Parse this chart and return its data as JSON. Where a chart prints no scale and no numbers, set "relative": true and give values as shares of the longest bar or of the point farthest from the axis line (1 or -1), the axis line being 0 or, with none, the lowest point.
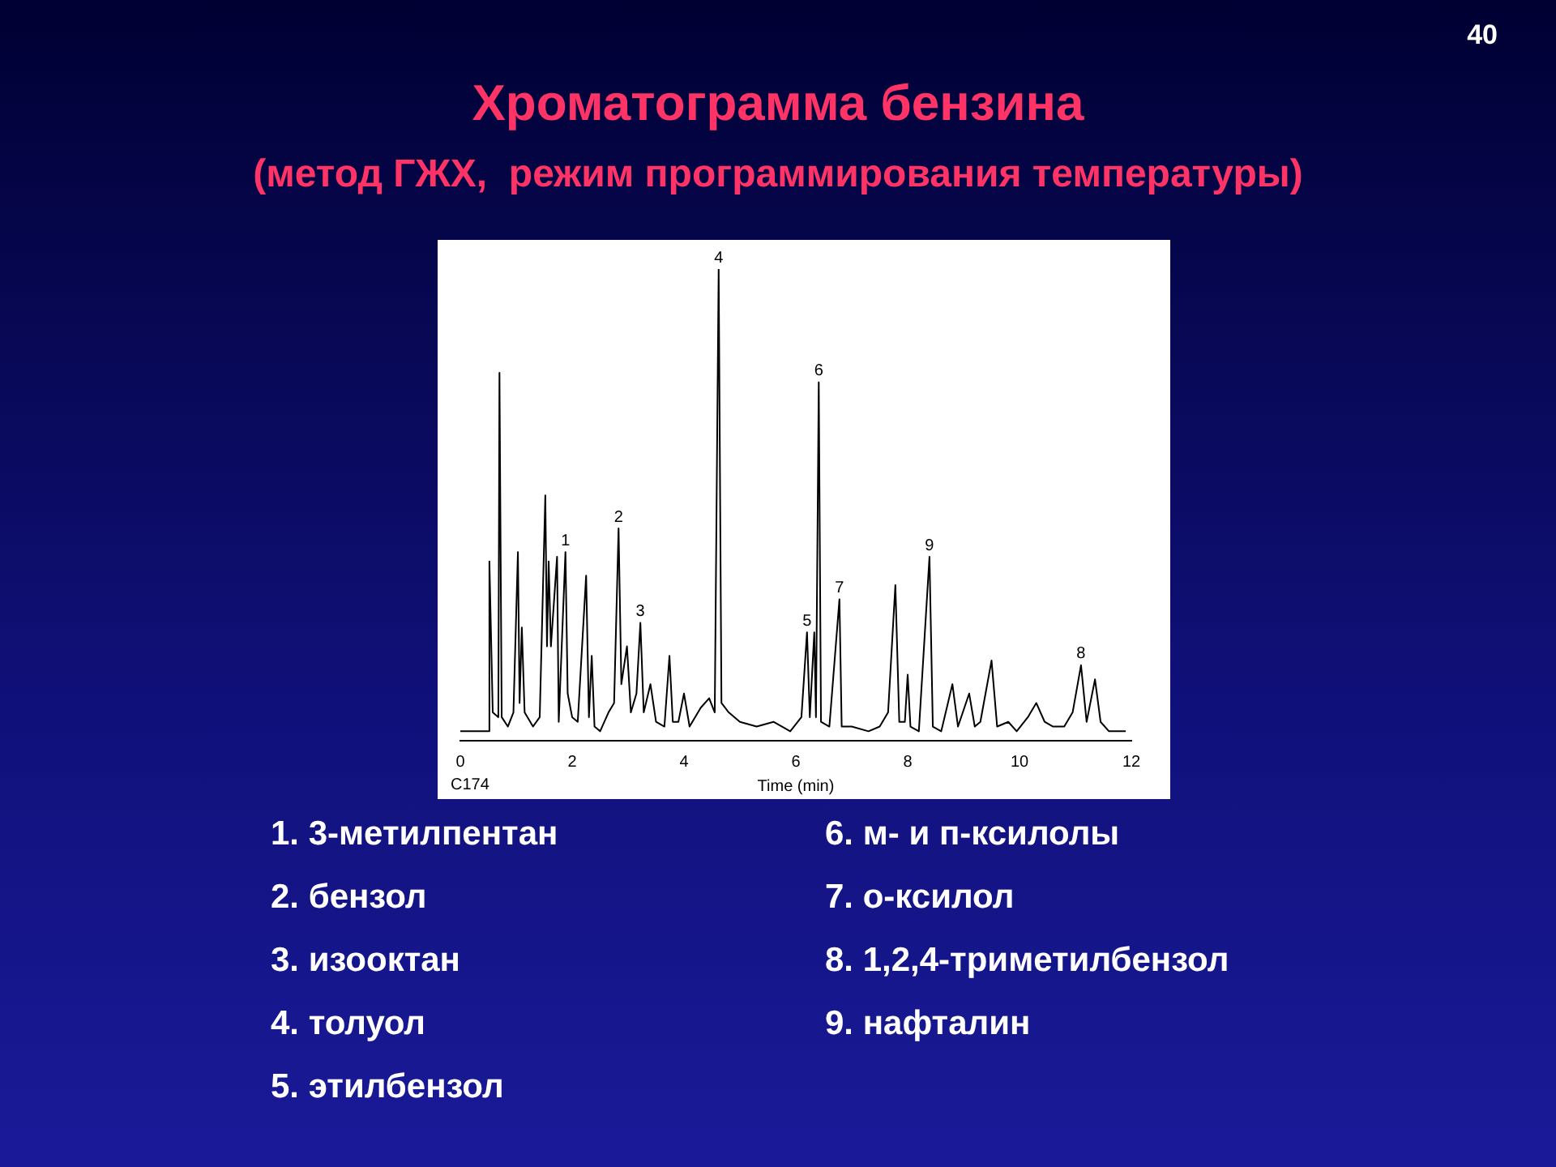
{
  "chart_data": {
    "type": "line",
    "title": "Хроматограмма бензина",
    "subtitle": "(метод ГЖХ,  режим программирования температуры)",
    "xlabel": "Time (min)",
    "relative": true,
    "xlim": [
      0,
      12
    ],
    "xticks": [
      0,
      2,
      4,
      6,
      8,
      10,
      12
    ],
    "tick_labels": "x",
    "grid": false,
    "legend": false,
    "marker": "none",
    "line_style": "solid",
    "x": [
      0,
      0.5,
      0.52,
      0.58,
      0.68,
      0.7,
      0.74,
      0.85,
      0.95,
      1.03,
      1.06,
      1.1,
      1.15,
      1.3,
      1.42,
      1.52,
      1.55,
      1.58,
      1.62,
      1.73,
      1.76,
      1.88,
      1.92,
      2.0,
      2.1,
      2.25,
      2.3,
      2.35,
      2.4,
      2.5,
      2.65,
      2.75,
      2.83,
      2.88,
      2.98,
      3.05,
      3.15,
      3.22,
      3.28,
      3.4,
      3.5,
      3.65,
      3.74,
      3.8,
      3.9,
      4.0,
      4.1,
      4.3,
      4.45,
      4.55,
      4.62,
      4.67,
      4.8,
      5.0,
      5.3,
      5.6,
      5.9,
      6.1,
      6.2,
      6.25,
      6.33,
      6.36,
      6.41,
      6.45,
      6.6,
      6.78,
      6.82,
      7.0,
      7.3,
      7.5,
      7.65,
      7.78,
      7.85,
      7.95,
      8.0,
      8.05,
      8.2,
      8.39,
      8.45,
      8.6,
      8.8,
      8.9,
      9.1,
      9.2,
      9.3,
      9.5,
      9.6,
      9.8,
      9.95,
      10.15,
      10.3,
      10.45,
      10.6,
      10.8,
      10.95,
      11.1,
      11.2,
      11.35,
      11.45,
      11.6,
      11.9
    ],
    "series": [
      {
        "color": "#000000",
        "values": [
          0.02,
          0.02,
          0.38,
          0.06,
          0.05,
          0.78,
          0.05,
          0.03,
          0.06,
          0.4,
          0.08,
          0.24,
          0.06,
          0.03,
          0.05,
          0.52,
          0.2,
          0.38,
          0.2,
          0.39,
          0.04,
          0.4,
          0.1,
          0.05,
          0.04,
          0.35,
          0.05,
          0.18,
          0.03,
          0.02,
          0.06,
          0.08,
          0.45,
          0.12,
          0.2,
          0.06,
          0.1,
          0.25,
          0.06,
          0.12,
          0.04,
          0.03,
          0.18,
          0.04,
          0.04,
          0.1,
          0.03,
          0.07,
          0.09,
          0.06,
          1.0,
          0.08,
          0.06,
          0.04,
          0.03,
          0.04,
          0.02,
          0.05,
          0.23,
          0.05,
          0.23,
          0.05,
          0.76,
          0.04,
          0.03,
          0.3,
          0.03,
          0.03,
          0.02,
          0.03,
          0.06,
          0.33,
          0.04,
          0.04,
          0.14,
          0.03,
          0.02,
          0.39,
          0.03,
          0.02,
          0.12,
          0.03,
          0.1,
          0.03,
          0.04,
          0.17,
          0.03,
          0.04,
          0.02,
          0.05,
          0.08,
          0.04,
          0.03,
          0.03,
          0.06,
          0.16,
          0.04,
          0.13,
          0.04,
          0.02,
          0.02
        ]
      }
    ],
    "annotations": [
      "40",
      "C174",
      "1. 3-метилпентан",
      "2. бензол",
      "3. изооктан",
      "4. толуол",
      "5. этилбензол",
      "6. м- и п-ксилолы",
      "7. о-ксилол",
      "8. 1,2,4-триметилбензол",
      "9. нафталин",
      {
        "text": "1",
        "x": 1.88,
        "y": 0.4
      },
      {
        "text": "2",
        "x": 2.83,
        "y": 0.45
      },
      {
        "text": "3",
        "x": 3.22,
        "y": 0.25
      },
      {
        "text": "4",
        "x": 4.62,
        "y": 1.0
      },
      {
        "text": "5",
        "x": 6.2,
        "y": 0.23
      },
      {
        "text": "6",
        "x": 6.41,
        "y": 0.76
      },
      {
        "text": "7",
        "x": 6.78,
        "y": 0.3
      },
      {
        "text": "8",
        "x": 11.1,
        "y": 0.16
      },
      {
        "text": "9",
        "x": 8.39,
        "y": 0.39
      }
    ]
  }
}
